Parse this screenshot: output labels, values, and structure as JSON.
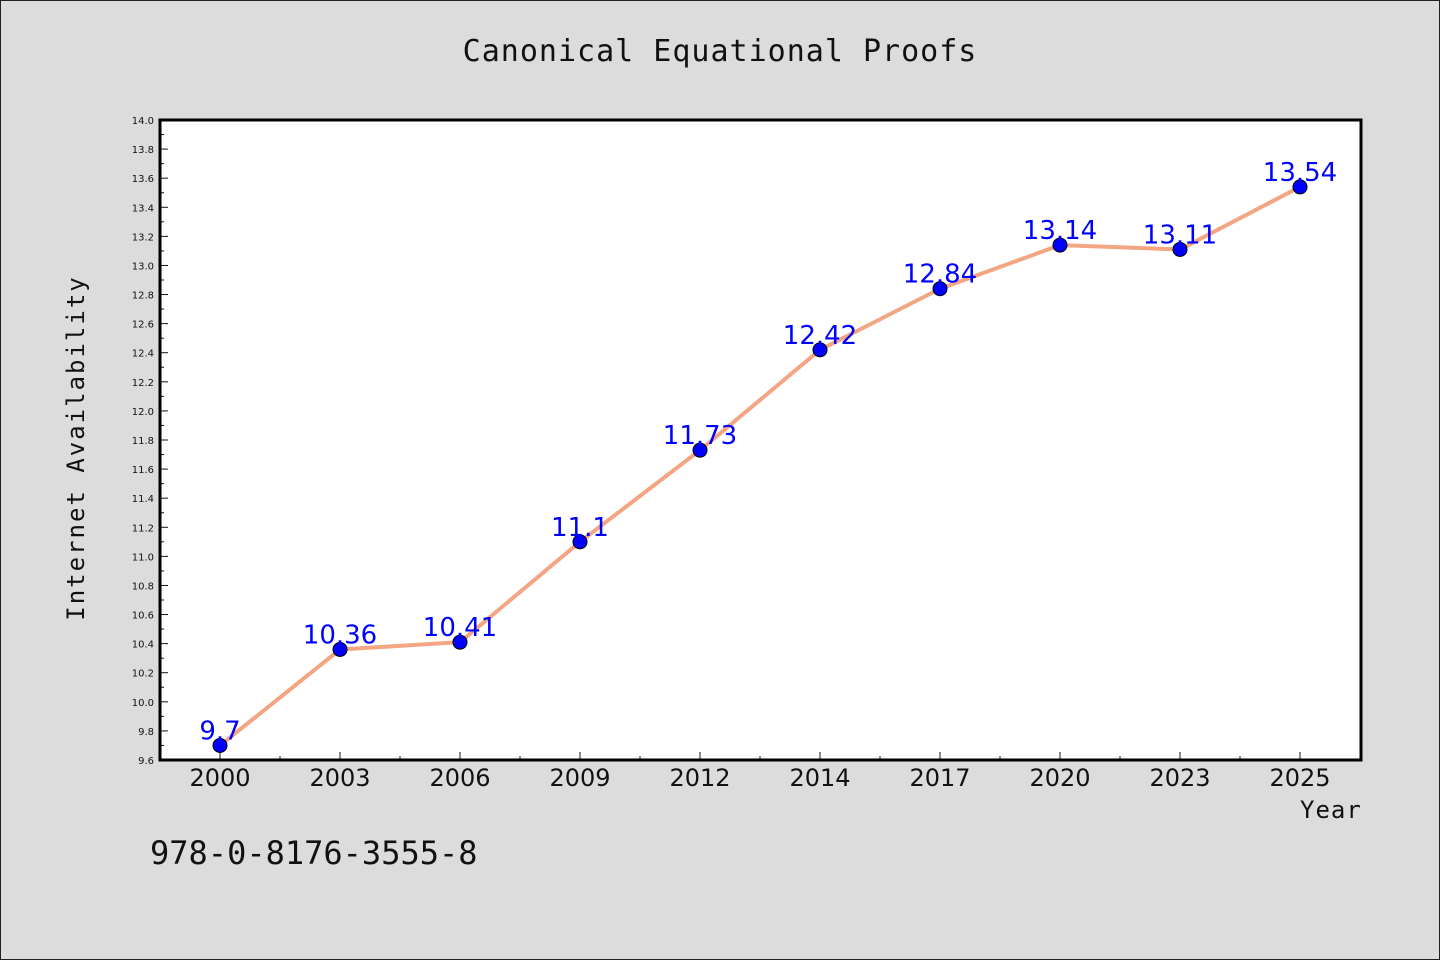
{
  "chart_data": {
    "type": "line",
    "title": "Canonical Equational Proofs",
    "xlabel": "Year",
    "ylabel": "Internet Availability",
    "categories": [
      "2000",
      "2003",
      "2006",
      "2009",
      "2012",
      "2014",
      "2017",
      "2020",
      "2023",
      "2025"
    ],
    "series": [
      {
        "values": [
          9.7,
          10.36,
          10.41,
          11.1,
          11.73,
          12.42,
          12.84,
          13.14,
          13.11,
          13.54
        ],
        "labels": [
          "9.7",
          "10.36",
          "10.41",
          "11.1",
          "11.73",
          "12.42",
          "12.84",
          "13.14",
          "13.11",
          "13.54"
        ],
        "line_color": "#f4a582",
        "marker_color": "#0000ff",
        "label_color": "#0000ff"
      }
    ],
    "ylim": [
      9.6,
      14.0
    ],
    "yticks": [
      "9.6",
      "9.8",
      "10.0",
      "10.2",
      "10.4",
      "10.6",
      "10.8",
      "11.0",
      "11.2",
      "11.4",
      "11.6",
      "11.8",
      "12.0",
      "12.2",
      "12.4",
      "12.6",
      "12.8",
      "13.0",
      "13.2",
      "13.4",
      "13.6",
      "13.8",
      "14.0"
    ],
    "grid": false,
    "legend": "none"
  },
  "footer": {
    "isbn": "978-0-8176-3555-8"
  }
}
